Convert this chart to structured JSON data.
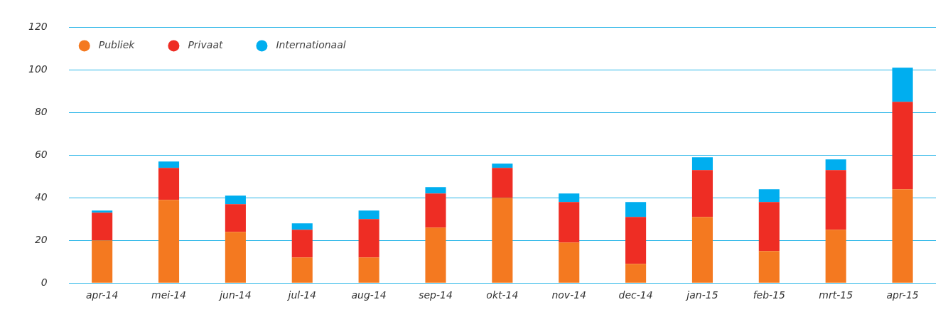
{
  "chart_data": {
    "type": "bar",
    "stacked": true,
    "categories": [
      "apr-14",
      "mei-14",
      "jun-14",
      "jul-14",
      "aug-14",
      "sep-14",
      "okt-14",
      "nov-14",
      "dec-14",
      "jan-15",
      "feb-15",
      "mrt-15",
      "apr-15"
    ],
    "series": [
      {
        "name": "Publiek",
        "color": "#f47920",
        "values": [
          20,
          39,
          24,
          12,
          12,
          26,
          40,
          19,
          9,
          31,
          15,
          25,
          44
        ]
      },
      {
        "name": "Privaat",
        "color": "#ee2d24",
        "values": [
          13,
          15,
          13,
          13,
          18,
          16,
          14,
          19,
          22,
          22,
          23,
          28,
          41
        ]
      },
      {
        "name": "Internationaal",
        "color": "#00aeef",
        "values": [
          1,
          3,
          4,
          3,
          4,
          3,
          2,
          4,
          7,
          6,
          6,
          5,
          16
        ]
      }
    ],
    "ylim": [
      0,
      120
    ],
    "yticks": [
      0,
      20,
      40,
      60,
      80,
      100,
      120
    ],
    "grid": "y",
    "legend": "top left"
  }
}
